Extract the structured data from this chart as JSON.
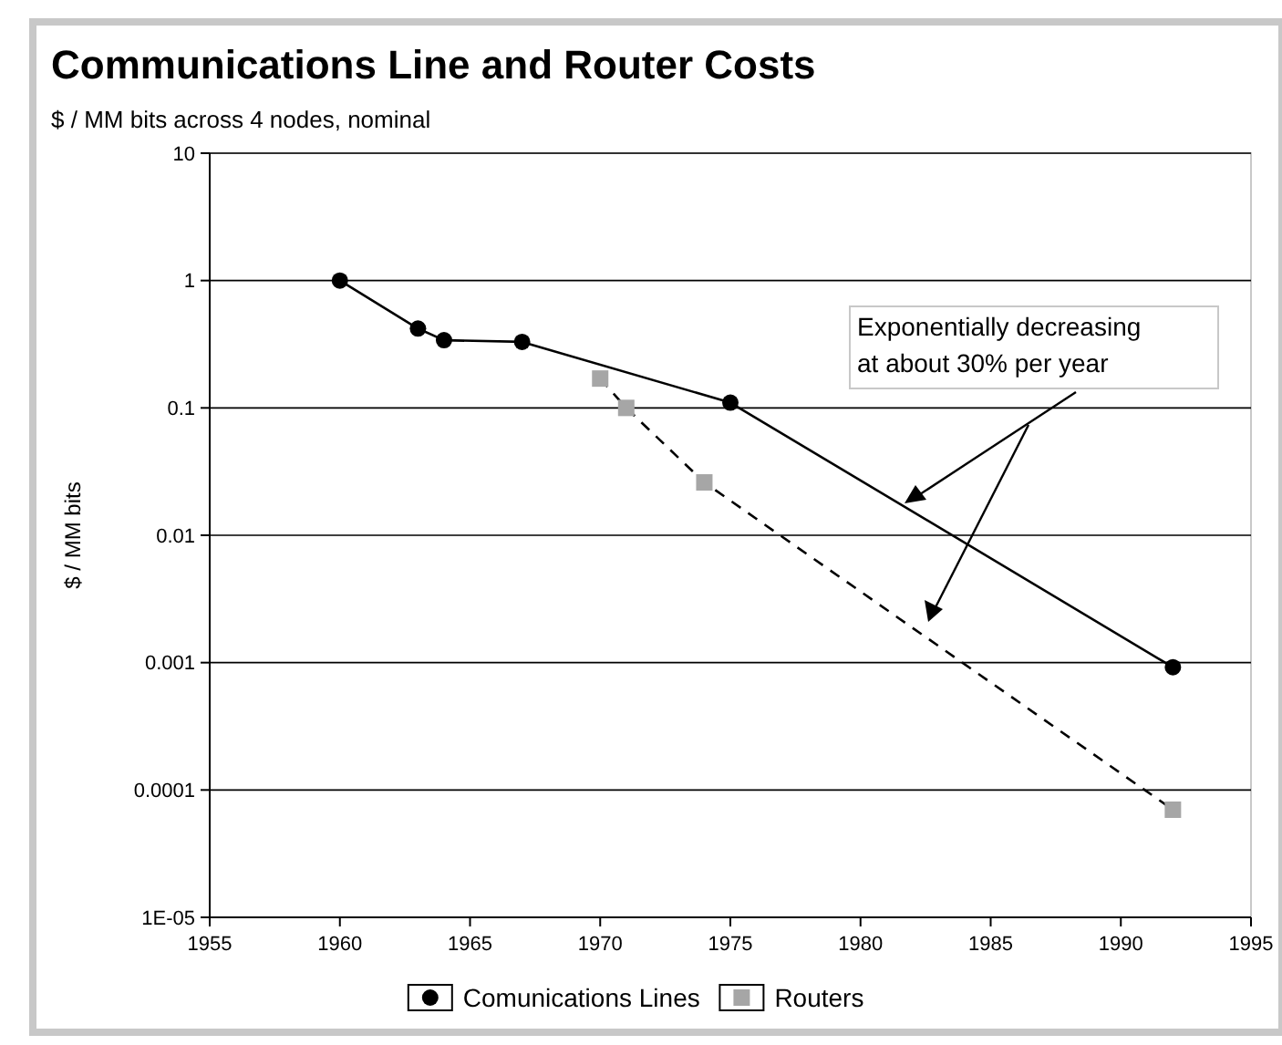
{
  "chart_data": {
    "type": "line",
    "title": "Communications Line and Router Costs",
    "subtitle": "$ / MM bits across 4 nodes, nominal",
    "ylabel": "$ / MM bits",
    "series": [
      {
        "name": "Comunications Lines",
        "color": "#000000",
        "marker": "circle",
        "line_style": "solid",
        "x": [
          1960,
          1963,
          1964,
          1967,
          1975,
          1992
        ],
        "values": [
          1.0,
          0.42,
          0.34,
          0.33,
          0.11,
          0.00092
        ]
      },
      {
        "name": "Routers",
        "color": "#a6a6a6",
        "marker": "square",
        "line_style": "dashed",
        "x": [
          1970,
          1971,
          1974,
          1992
        ],
        "values": [
          0.17,
          0.1,
          0.026,
          7e-05
        ]
      }
    ],
    "xlim": [
      1955,
      1995
    ],
    "xticks": [
      1955,
      1960,
      1965,
      1970,
      1975,
      1980,
      1985,
      1990,
      1995
    ],
    "ylim": [
      1e-05,
      10
    ],
    "yticks": [
      {
        "value": 1e-05,
        "label": "1E-05"
      },
      0.0001,
      0.001,
      0.01,
      0.1,
      1,
      10
    ],
    "log": "y",
    "grid": "y",
    "legend": "bottom",
    "annotations": [
      "Exponentially decreasing\nat about 30% per year"
    ]
  }
}
